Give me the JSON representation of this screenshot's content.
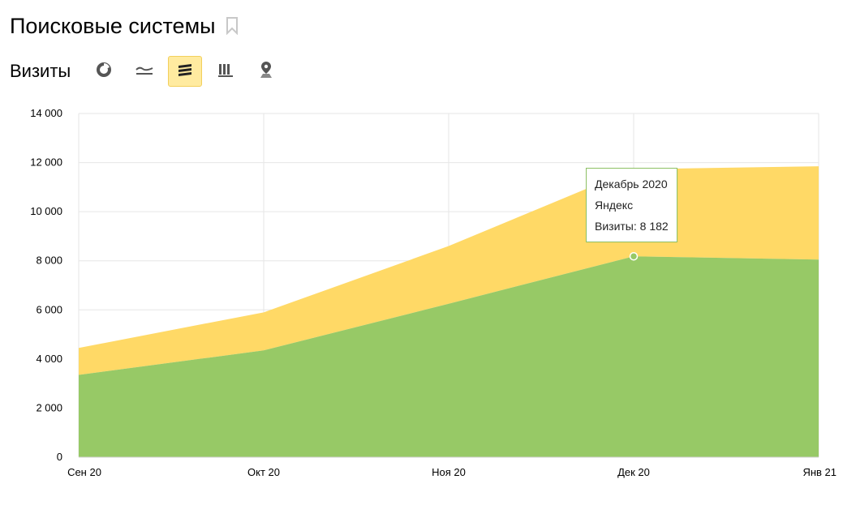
{
  "header": {
    "title": "Поисковые системы"
  },
  "toolbar": {
    "metric": "Визиты"
  },
  "colors": {
    "yandex": "#97c966",
    "other": "#ffd966",
    "grid": "#e6e6e6",
    "tooltip_border": "#8cc063",
    "active_button": "#ffeba0"
  },
  "icons": [
    "bookmark-icon",
    "pie-chart-icon",
    "line-chart-icon",
    "stacked-area-chart-icon",
    "bar-chart-icon",
    "map-icon"
  ],
  "chart_data": {
    "type": "area",
    "stacked": true,
    "categories": [
      "Сен 20",
      "Окт 20",
      "Ноя 20",
      "Дек 20",
      "Янв 21"
    ],
    "series": [
      {
        "name": "Яндекс",
        "values": [
          3350,
          4350,
          6250,
          8182,
          8050
        ]
      },
      {
        "values": [
          1100,
          1550,
          2350,
          3550,
          3800
        ]
      }
    ],
    "ylim": [
      0,
      14000
    ],
    "yticks": [
      "0",
      "2 000",
      "4 000",
      "6 000",
      "8 000",
      "10 000",
      "12 000",
      "14 000"
    ],
    "grid": true
  },
  "tooltip": {
    "title": "Декабрь 2020",
    "series": "Яндекс",
    "value_line": "Визиты: 8 182"
  }
}
